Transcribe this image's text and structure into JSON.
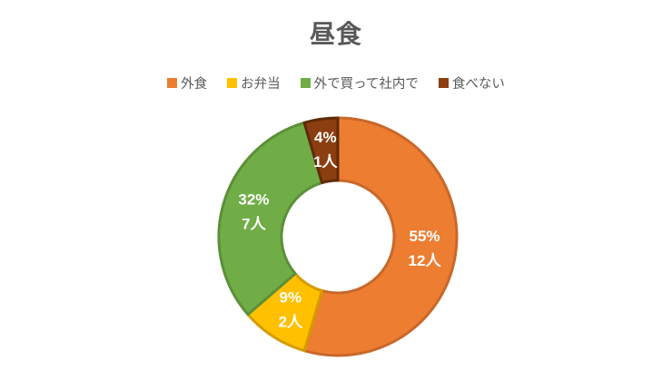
{
  "chart_data": {
    "type": "pie",
    "subtype": "donut",
    "title": "昼食",
    "categories": [
      "外食",
      "お弁当",
      "外で買って社内で",
      "食べない"
    ],
    "values": [
      12,
      2,
      7,
      1
    ],
    "unit": "人",
    "total": 22,
    "percent_labels": [
      "55%",
      "9%",
      "32%",
      "4%"
    ],
    "count_labels": [
      "12人",
      "2人",
      "7人",
      "1人"
    ],
    "colors": [
      "#ED7D31",
      "#FFC000",
      "#70AD47",
      "#8B3E10"
    ],
    "border_colors": [
      "#C8682A",
      "#D69C00",
      "#5B9038",
      "#5F2B08"
    ],
    "legend_position": "top",
    "start_angle_deg": 0,
    "clockwise": true,
    "hole_ratio": 0.47,
    "text_colors": {
      "title": "#595959",
      "legend": "#595959",
      "data_label": "#FFFFFF"
    }
  }
}
